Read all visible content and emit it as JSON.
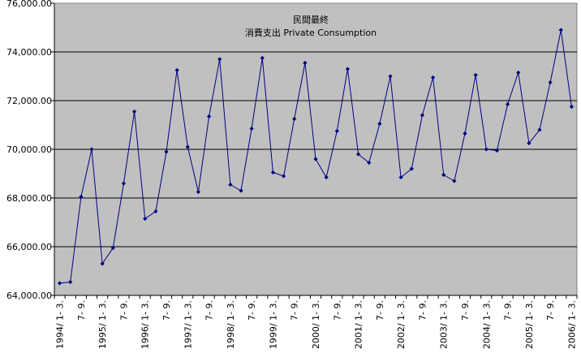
{
  "chart_data": {
    "type": "line",
    "title": "民間最終",
    "subtitle": "消費支出 Private Consumption",
    "xlabel": "",
    "ylabel": "",
    "ylim": [
      64000,
      76000
    ],
    "yticks": [
      64000,
      66000,
      68000,
      70000,
      72000,
      74000,
      76000
    ],
    "ytick_labels": [
      "64,000.00",
      "66,000.00",
      "68,000.00",
      "70,000.00",
      "72,000.00",
      "74,000.00",
      "76,000.00"
    ],
    "grid": true,
    "legend": "none",
    "colors": {
      "plot_background": "#c0c0c0",
      "line": "#000080",
      "grid": "#000000"
    },
    "categories": [
      "1994/ 1- 3.",
      "4- 6.",
      "7- 9.",
      "10-12.",
      "1995/ 1- 3.",
      "4- 6.",
      "7- 9.",
      "10-12.",
      "1996/ 1- 3.",
      "4- 6.",
      "7- 9.",
      "10-12.",
      "1997/ 1- 3.",
      "4- 6.",
      "7- 9.",
      "10-12.",
      "1998/ 1- 3.",
      "4- 6.",
      "7- 9.",
      "10-12.",
      "1999/ 1- 3.",
      "4- 6.",
      "7- 9.",
      "10-12.",
      "2000/ 1- 3.",
      "4- 6.",
      "7- 9.",
      "10-12.",
      "2001/ 1- 3.",
      "4- 6.",
      "7- 9.",
      "10-12.",
      "2002/ 1- 3.",
      "4- 6.",
      "7- 9.",
      "10-12.",
      "2003/ 1- 3.",
      "4- 6.",
      "7- 9.",
      "10-12.",
      "2004/ 1- 3.",
      "4- 6.",
      "7- 9.",
      "10-12.",
      "2005/ 1- 3.",
      "4- 6.",
      "7- 9.",
      "10-12.",
      "2006/ 1- 3."
    ],
    "xtick_labels": [
      "1994/ 1- 3.",
      "7- 9.",
      "1995/ 1- 3.",
      "7- 9.",
      "1996/ 1- 3.",
      "7- 9.",
      "1997/ 1- 3.",
      "7- 9.",
      "1998/ 1- 3.",
      "7- 9.",
      "1999/ 1- 3.",
      "7- 9.",
      "2000/ 1- 3.",
      "7- 9.",
      "2001/ 1- 3.",
      "7- 9.",
      "2002/ 1- 3.",
      "7- 9.",
      "2003/ 1- 3.",
      "7- 9.",
      "2004/ 1- 3.",
      "7- 9.",
      "2005/ 1- 3.",
      "7- 9.",
      "2006/ 1- 3."
    ],
    "series": [
      {
        "values": [
          64500,
          64550,
          68050,
          70000,
          65300,
          65950,
          68600,
          71550,
          67150,
          67450,
          69900,
          73250,
          70100,
          68250,
          71350,
          73700,
          68550,
          68300,
          70850,
          73750,
          69050,
          68900,
          71250,
          73550,
          69600,
          68850,
          70750,
          73300,
          69800,
          69450,
          71050,
          73000,
          68850,
          69200,
          71400,
          72950,
          68950,
          68700,
          70650,
          73050,
          70000,
          69950,
          71850,
          73150,
          70250,
          70800,
          72750,
          74900,
          71750
        ]
      }
    ]
  }
}
